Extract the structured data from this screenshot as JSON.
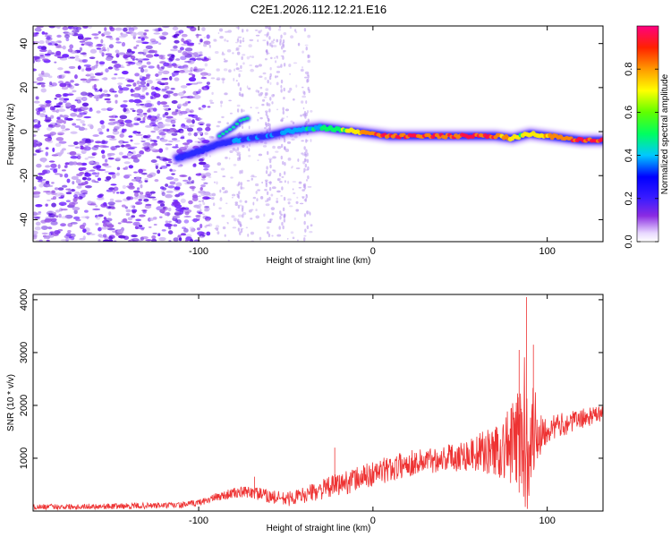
{
  "chart_data": [
    {
      "type": "heatmap",
      "title": "C2E1.2026.112.12.21.E16",
      "xlabel": "Height of straight line (km)",
      "ylabel": "Frequency (Hz)",
      "xlim": [
        -195,
        132
      ],
      "ylim": [
        -50,
        48
      ],
      "xticks": [
        {
          "v": -100,
          "label": "-100"
        },
        {
          "v": 0,
          "label": "0"
        },
        {
          "v": 100,
          "label": "100"
        }
      ],
      "yticks": [
        {
          "v": 40,
          "label": "40"
        },
        {
          "v": 20,
          "label": "20"
        },
        {
          "v": 0,
          "label": "0"
        },
        {
          "v": -20,
          "label": "-20"
        },
        {
          "v": -40,
          "label": "-40"
        }
      ],
      "colorbar": {
        "label": "Normalized spectral amplitude",
        "range": [
          0,
          1
        ],
        "ticks": [
          {
            "v": 0.0,
            "label": "0.0"
          },
          {
            "v": 0.2,
            "label": "0.2"
          },
          {
            "v": 0.4,
            "label": "0.4"
          },
          {
            "v": 0.6,
            "label": "0.6"
          },
          {
            "v": 0.8,
            "label": "0.8"
          }
        ]
      },
      "ridge": {
        "x": [
          -112,
          -100,
          -90,
          -80,
          -70,
          -60,
          -50,
          -40,
          -30,
          -20,
          -10,
          0,
          10,
          20,
          40,
          60,
          70,
          80,
          90,
          100,
          110,
          120,
          132
        ],
        "freq": [
          -12,
          -9,
          -6,
          -4,
          -3,
          -2,
          0,
          1,
          2,
          1,
          0,
          -1,
          -2,
          -2,
          -2,
          -2,
          -2,
          -3,
          -1,
          -2,
          -3,
          -4,
          -4
        ],
        "amplitude": [
          0.2,
          0.25,
          0.3,
          0.35,
          0.35,
          0.35,
          0.4,
          0.45,
          0.5,
          0.6,
          0.75,
          0.9,
          0.95,
          0.95,
          0.95,
          0.95,
          0.9,
          0.75,
          0.7,
          0.8,
          0.9,
          0.95,
          0.95
        ]
      },
      "branch": {
        "x": [
          -88,
          -80,
          -76,
          -72
        ],
        "freq": [
          -2,
          2,
          5,
          6
        ]
      }
    },
    {
      "type": "line",
      "xlabel": "Height of straight line (km)",
      "ylabel": "SNR (10 * v/v)",
      "xlim": [
        -195,
        132
      ],
      "ylim": [
        0,
        4100
      ],
      "xticks": [
        {
          "v": -100,
          "label": "-100"
        },
        {
          "v": 0,
          "label": "0"
        },
        {
          "v": 100,
          "label": "100"
        }
      ],
      "yticks": [
        {
          "v": 1000,
          "label": "1000"
        },
        {
          "v": 2000,
          "label": "2000"
        },
        {
          "v": 3000,
          "label": "3000"
        },
        {
          "v": 4000,
          "label": "4000"
        }
      ],
      "color": "#ee3333",
      "baseline": {
        "x": [
          -195,
          -150,
          -110,
          -100,
          -90,
          -80,
          -70,
          -60,
          -50,
          -40,
          -30,
          -20,
          -10,
          0,
          10,
          20,
          40,
          60,
          70,
          80,
          90,
          100,
          110,
          120,
          132
        ],
        "y": [
          80,
          90,
          110,
          160,
          260,
          340,
          360,
          280,
          220,
          300,
          400,
          500,
          600,
          700,
          800,
          900,
          1000,
          1100,
          1150,
          1250,
          1500,
          1550,
          1650,
          1750,
          1850
        ]
      },
      "noise": {
        "x": [
          -195,
          -100,
          -70,
          -40,
          -20,
          0,
          40,
          60,
          70,
          80,
          85,
          88,
          92,
          100,
          132
        ],
        "amplitude": [
          50,
          60,
          120,
          150,
          220,
          250,
          250,
          350,
          500,
          800,
          1300,
          1600,
          900,
          250,
          150
        ]
      },
      "spikes": [
        {
          "x": -68,
          "y": 650
        },
        {
          "x": -22,
          "y": 1200
        },
        {
          "x": 88,
          "y": 4050
        },
        {
          "x": 84,
          "y": 3050
        },
        {
          "x": 92,
          "y": 3150
        }
      ]
    }
  ]
}
